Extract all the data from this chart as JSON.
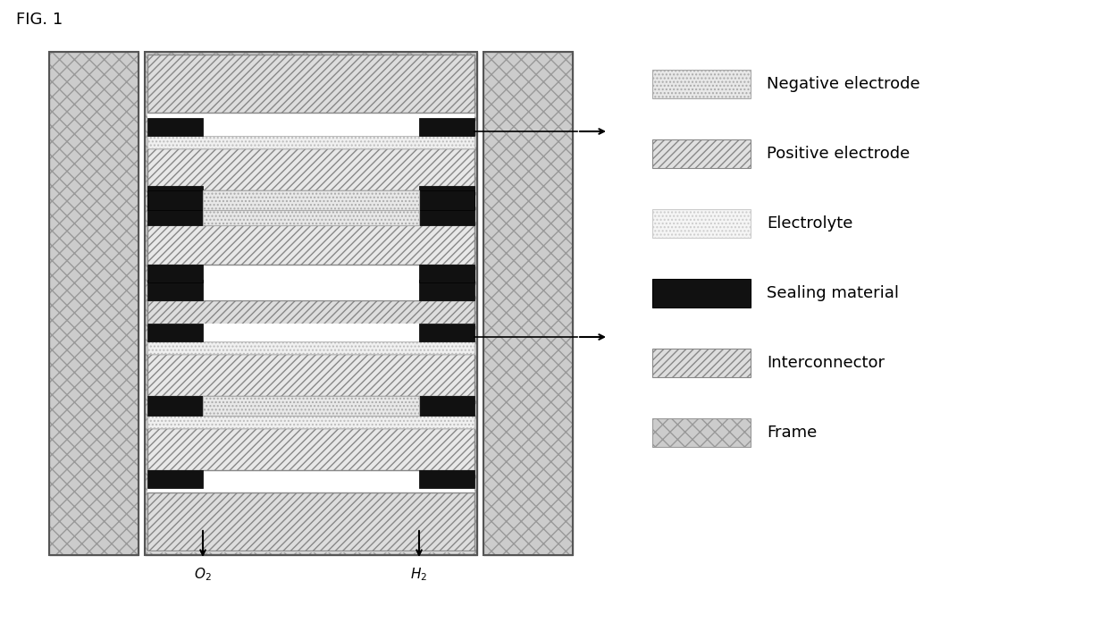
{
  "fig_title": "FIG. 1",
  "bg_color": "#ffffff",
  "frame_fc": "#cccccc",
  "frame_hatch": "xx",
  "frame_ec": "#999999",
  "inter_fc": "#dddddd",
  "inter_hatch": "////",
  "inter_ec": "#888888",
  "pos_fc": "#e8e8e8",
  "pos_hatch": "////",
  "pos_ec": "#888888",
  "neg_fc": "#e8e8e8",
  "neg_hatch": "....",
  "neg_ec": "#aaaaaa",
  "elec_fc": "#f0f0f0",
  "elec_hatch": "....",
  "elec_ec": "#bbbbbb",
  "seal_fc": "#111111",
  "seal_ec": "#000000",
  "legend_items": [
    {
      "label": "Negative electrode",
      "hatch": "....",
      "facecolor": "#e8e8e8",
      "edgecolor": "#aaaaaa"
    },
    {
      "label": "Positive electrode",
      "hatch": "////",
      "facecolor": "#e0e0e0",
      "edgecolor": "#888888"
    },
    {
      "label": "Electrolyte",
      "hatch": "....",
      "facecolor": "#f5f5f5",
      "edgecolor": "#cccccc"
    },
    {
      "label": "Sealing material",
      "hatch": "",
      "facecolor": "#111111",
      "edgecolor": "#000000"
    },
    {
      "label": "Interconnector",
      "hatch": "////",
      "facecolor": "#dddddd",
      "edgecolor": "#888888"
    },
    {
      "label": "Frame",
      "hatch": "xx",
      "facecolor": "#cccccc",
      "edgecolor": "#999999"
    }
  ]
}
